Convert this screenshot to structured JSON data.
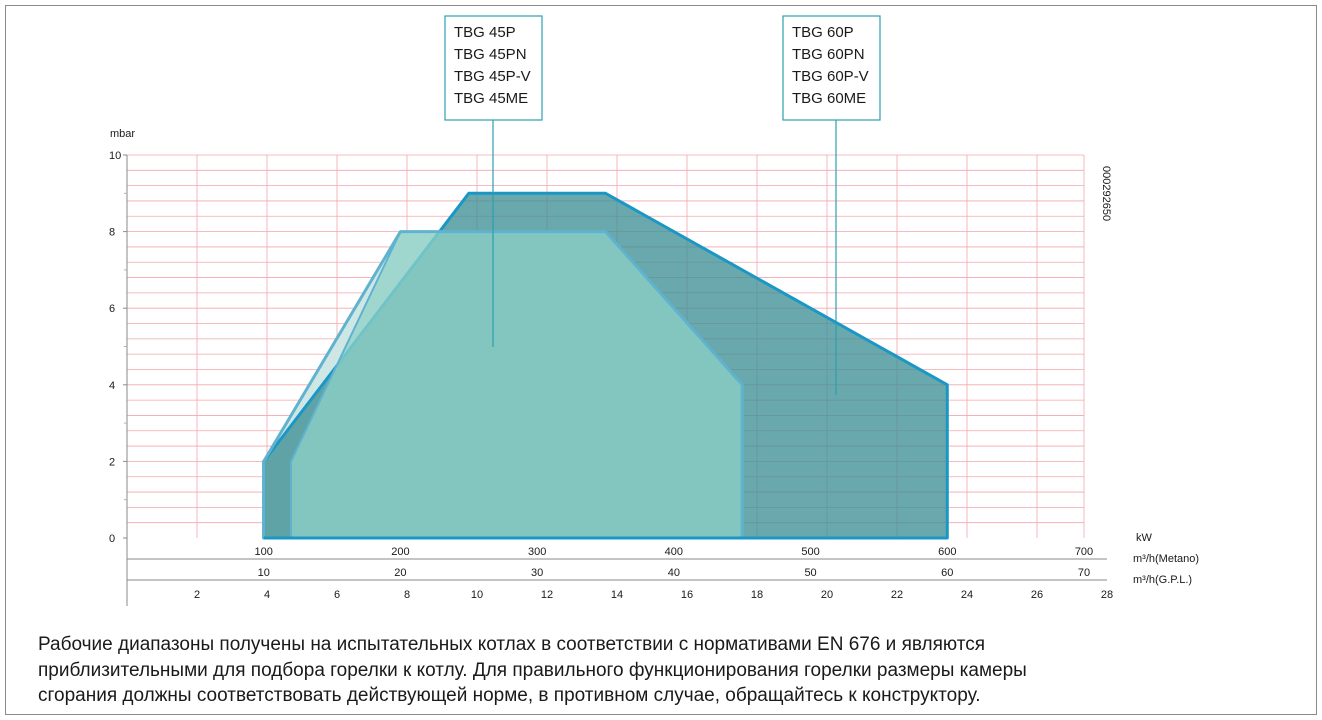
{
  "chart_data": {
    "type": "area",
    "yunit": "mbar",
    "ylim": [
      0,
      10
    ],
    "y_ticks": [
      0,
      2,
      4,
      6,
      8,
      10
    ],
    "x_scales": [
      {
        "name": "kW",
        "label": "kW",
        "range": [
          0,
          700
        ],
        "ticks": [
          100,
          200,
          300,
          400,
          500,
          600,
          700
        ]
      },
      {
        "name": "metano",
        "label": "m³/h(Metano)",
        "range": [
          0,
          70
        ],
        "ticks": [
          10,
          20,
          30,
          40,
          50,
          60,
          70
        ]
      },
      {
        "name": "gpl",
        "label": "m³/h(G.P.L.)",
        "range": [
          0,
          28
        ],
        "ticks": [
          2,
          4,
          6,
          8,
          10,
          12,
          14,
          16,
          18,
          20,
          22,
          24,
          26,
          28
        ]
      }
    ],
    "series": [
      {
        "name": "TBG 60P / TBG 60PN / TBG 60P-V / TBG 60ME",
        "kw": [
          100,
          100,
          250,
          350,
          600,
          600
        ],
        "mbar": [
          0,
          2,
          9,
          9,
          4,
          0
        ],
        "color": "#2e8f98"
      },
      {
        "name": "TBG 45P / TBG 45PN / TBG 45P-V / TBG 45ME",
        "kw": [
          100,
          100,
          200,
          350,
          450,
          450
        ],
        "mbar": [
          0,
          2,
          8,
          8,
          4,
          0
        ],
        "color": "#7ec9c3"
      }
    ],
    "grid": true,
    "code": "000292650"
  },
  "labels": {
    "box45": [
      "TBG 45P",
      "TBG 45PN",
      "TBG 45P-V",
      "TBG 45ME"
    ],
    "box60": [
      "TBG 60P",
      "TBG 60PN",
      "TBG 60P-V",
      "TBG 60ME"
    ]
  },
  "colors": {
    "grid": "#f2a7ad",
    "outline": "#1b97c6",
    "fill60": "#3f8f95",
    "fill45": "#8fd2c8",
    "fill45_light": "#cfe7e4",
    "outline45": "#5fb3cf"
  },
  "note": "Рабочие диапазоны получены на испытательных котлах в соответствии с нормативами EN 676 и являются\nприблизительными для подбора горелки к котлу. Для правильного функционирования горелки размеры камеры\nсгорания должны соответствовать  действующей норме, в противном случае, обращайтесь к конструктору."
}
